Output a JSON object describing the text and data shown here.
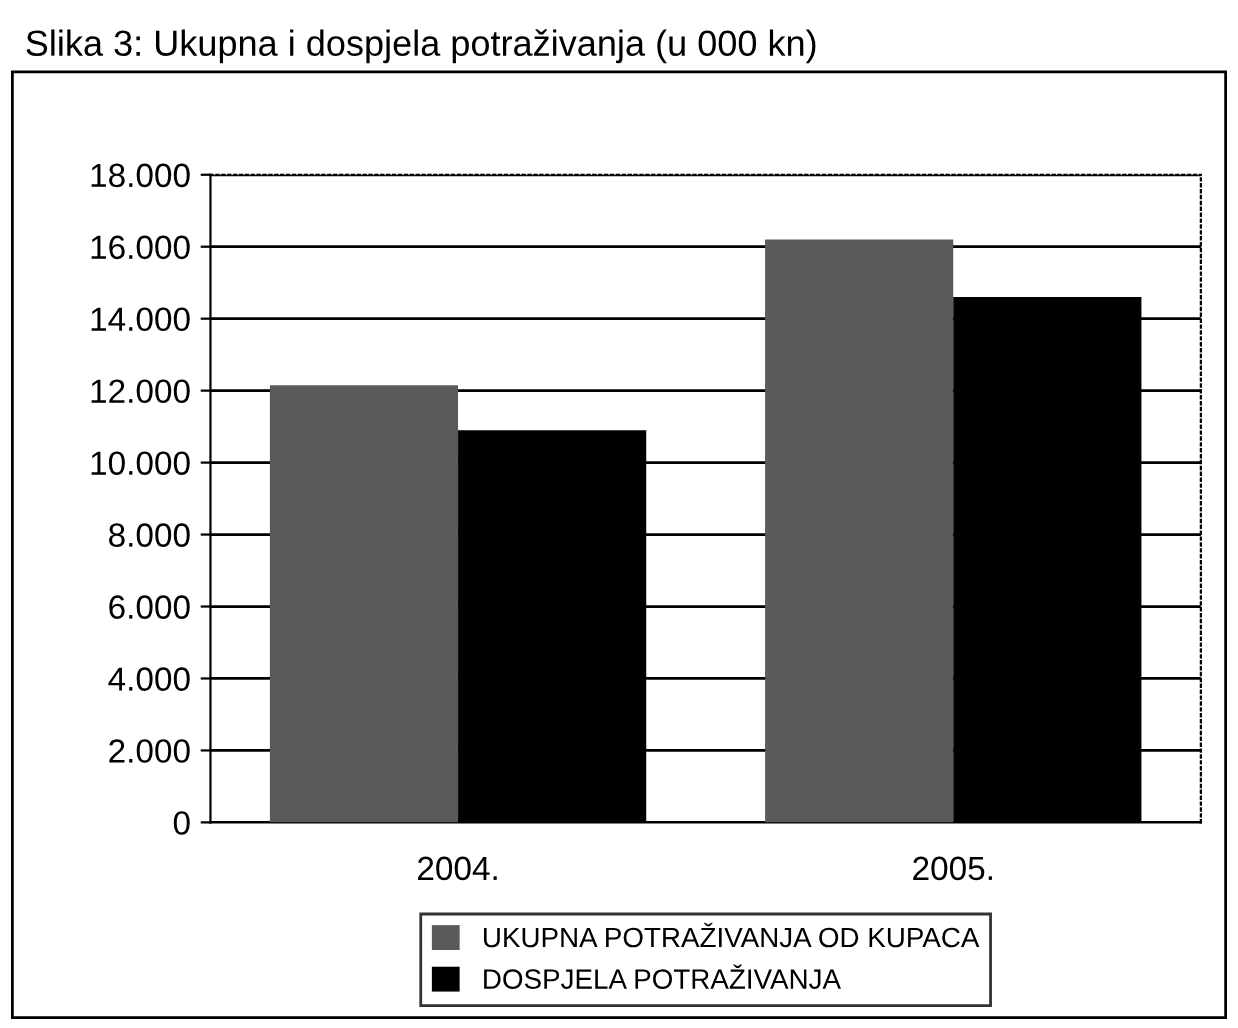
{
  "chart_data": {
    "type": "bar",
    "title": "Slika 3: Ukupna i dospjela potraživanja (u 000 kn)",
    "categories": [
      "2004.",
      "2005."
    ],
    "series": [
      {
        "name": "UKUPNA POTRAŽIVANJA OD KUPACA",
        "color": "#5a5a5a",
        "values": [
          12150,
          16200
        ]
      },
      {
        "name": "DOSPJELA POTRAŽIVANJA",
        "color": "#000000",
        "values": [
          10900,
          14600
        ]
      }
    ],
    "ylim": [
      0,
      18000
    ],
    "yticks": [
      {
        "value": 0,
        "label": "0"
      },
      {
        "value": 2000,
        "label": "2.000"
      },
      {
        "value": 4000,
        "label": "4.000"
      },
      {
        "value": 6000,
        "label": "6.000"
      },
      {
        "value": 8000,
        "label": "8.000"
      },
      {
        "value": 10000,
        "label": "10.000"
      },
      {
        "value": 12000,
        "label": "12.000"
      },
      {
        "value": 14000,
        "label": "14.000"
      },
      {
        "value": 16000,
        "label": "16.000"
      },
      {
        "value": 18000,
        "label": "18.000"
      }
    ],
    "grid": "y",
    "legend": "bottom"
  }
}
